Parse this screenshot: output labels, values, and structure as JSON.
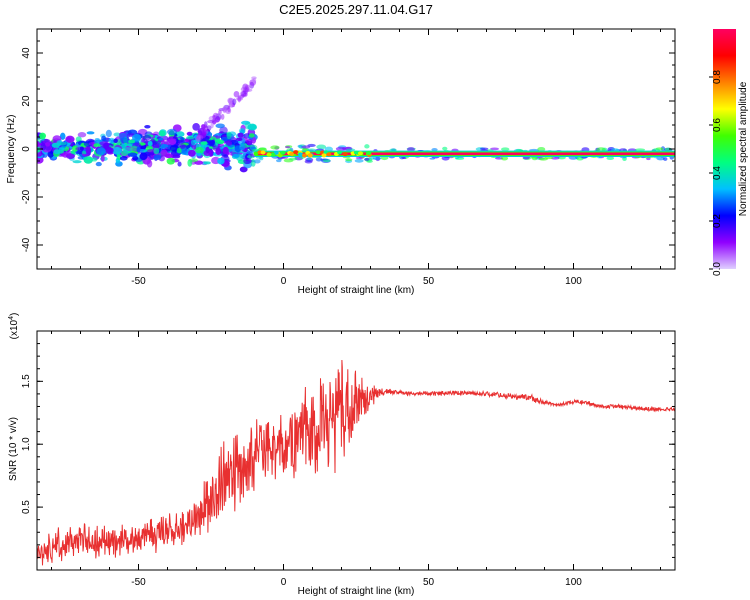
{
  "title": "C2E5.2025.297.11.04.G17",
  "chart_data": [
    {
      "type": "heatmap",
      "name": "spectrogram",
      "xlabel": "Height of straight line (km)",
      "ylabel": "Frequency (Hz)",
      "xlim": [
        -85,
        135
      ],
      "ylim": [
        -50,
        50
      ],
      "xticks": [
        -50,
        0,
        50,
        100
      ],
      "yticks": [
        -40,
        -20,
        0,
        20,
        40
      ],
      "colorbar": {
        "label": "Normalized spectral amplitude",
        "range": [
          0,
          1
        ],
        "ticks": [
          "0.0",
          "0.2",
          "0.4",
          "0.6",
          "0.8"
        ],
        "tick_values": [
          0.0,
          0.2,
          0.4,
          0.6,
          0.8
        ],
        "colors": [
          "#e0d0ff",
          "#9000ff",
          "#0000ff",
          "#00c0ff",
          "#00ff80",
          "#40ff00",
          "#ffff00",
          "#ff8000",
          "#ff0000",
          "#ff0060"
        ]
      },
      "features": [
        {
          "label": "broadband scattered region",
          "x_range": [
            -85,
            -10
          ],
          "freq_range": [
            -10,
            12
          ],
          "amplitude": [
            0.1,
            0.5
          ]
        },
        {
          "label": "weak drifting branch",
          "x_range": [
            -30,
            -10
          ],
          "freq_range": [
            5,
            28
          ],
          "amplitude": [
            0.05,
            0.15
          ]
        },
        {
          "label": "carrier line",
          "x_range": [
            -10,
            135
          ],
          "freq_center": -2,
          "amplitude": [
            0.85,
            1.0
          ]
        }
      ]
    },
    {
      "type": "line",
      "name": "snr",
      "xlabel": "Height of straight line (km)",
      "ylabel": "SNR (10 * v/v)",
      "multiplier": "(x10^4)",
      "multiplier_base": "(x10",
      "multiplier_exp": "4",
      "multiplier_close": ")",
      "xlim": [
        -85,
        135
      ],
      "ylim": [
        0,
        1.9
      ],
      "xticks": [
        -50,
        0,
        50,
        100
      ],
      "yticks": [
        0.5,
        1.0,
        1.5
      ],
      "ytick_labels": [
        "0.5",
        "1.0",
        "1.5"
      ],
      "color": "#e83030",
      "x": [
        -85,
        -80,
        -70,
        -60,
        -50,
        -40,
        -30,
        -25,
        -20,
        -15,
        -10,
        -5,
        0,
        5,
        10,
        15,
        20,
        25,
        30,
        35,
        40,
        50,
        60,
        70,
        75,
        80,
        85,
        90,
        95,
        100,
        105,
        110,
        115,
        120,
        125,
        130,
        135
      ],
      "mean": [
        0.12,
        0.18,
        0.25,
        0.22,
        0.26,
        0.3,
        0.4,
        0.6,
        0.7,
        0.78,
        0.95,
        0.9,
        1.0,
        1.05,
        1.1,
        1.15,
        1.25,
        1.3,
        1.38,
        1.42,
        1.41,
        1.4,
        1.41,
        1.4,
        1.39,
        1.38,
        1.37,
        1.33,
        1.31,
        1.34,
        1.33,
        1.3,
        1.3,
        1.29,
        1.28,
        1.28,
        1.28
      ],
      "noise_amplitude": [
        0.1,
        0.15,
        0.15,
        0.15,
        0.15,
        0.18,
        0.2,
        0.35,
        0.4,
        0.4,
        0.35,
        0.3,
        0.3,
        0.35,
        0.45,
        0.5,
        0.5,
        0.35,
        0.1,
        0.03,
        0.02,
        0.02,
        0.02,
        0.02,
        0.025,
        0.03,
        0.03,
        0.02,
        0.02,
        0.02,
        0.02,
        0.02,
        0.02,
        0.02,
        0.02,
        0.02,
        0.02
      ]
    }
  ]
}
